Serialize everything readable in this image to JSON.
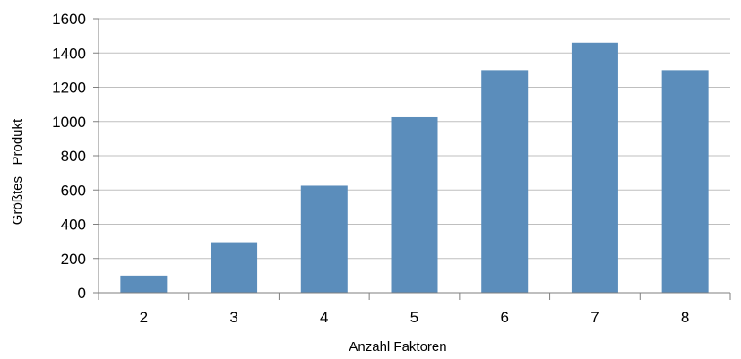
{
  "chart_data": {
    "type": "bar",
    "categories": [
      "2",
      "3",
      "4",
      "5",
      "6",
      "7",
      "8"
    ],
    "values": [
      100,
      295,
      625,
      1025,
      1300,
      1460,
      1300
    ],
    "xlabel": "Anzahl Faktoren",
    "ylabel": "Größtes   Produkt",
    "ylim": [
      0,
      1600
    ],
    "yticks": [
      "0",
      "200",
      "400",
      "600",
      "800",
      "1000",
      "1200",
      "1400",
      "1600"
    ],
    "grid": true,
    "legend": "none",
    "colors": {
      "bar": "#5b8dbb",
      "grid": "#bfbfbf",
      "axis": "#7f7f7f"
    }
  }
}
